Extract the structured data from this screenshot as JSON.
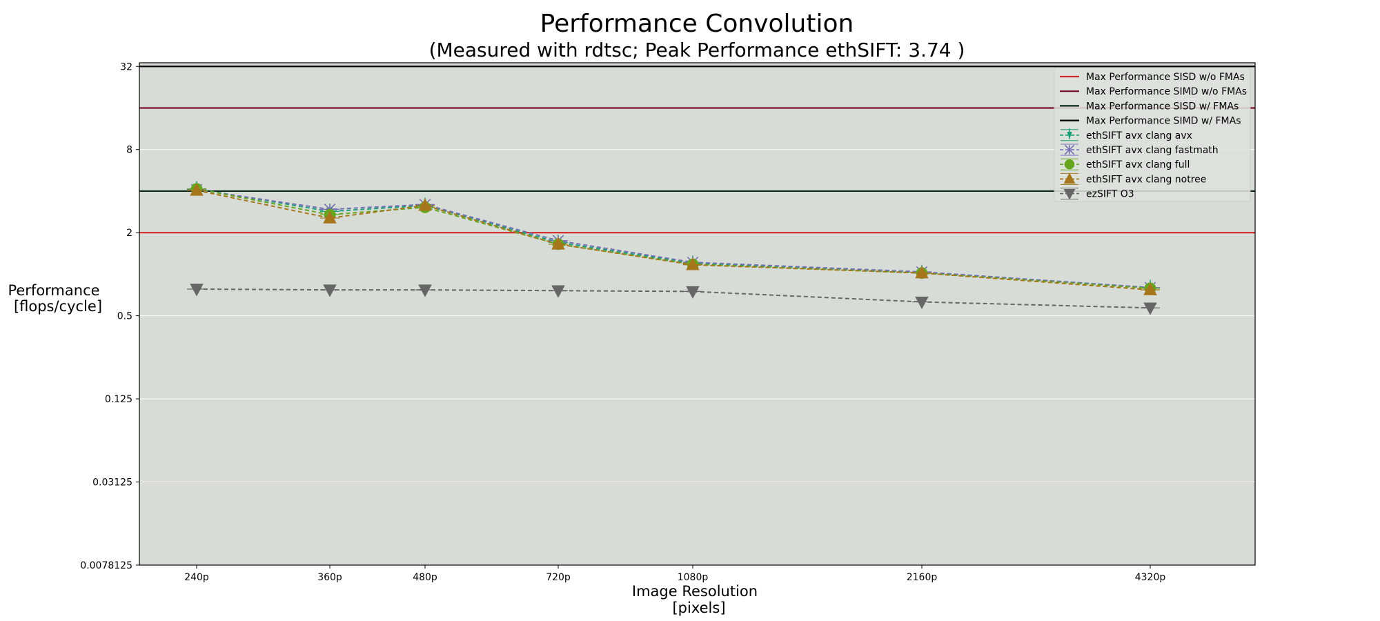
{
  "chart_data": {
    "type": "line",
    "title": "Performance Convolution",
    "subtitle": "(Measured with rdtsc; Peak Performance ethSIFT: 3.74 )",
    "xlabel": [
      "Image Resolution",
      "[pixels]"
    ],
    "ylabel": [
      "Performance",
      "[flops/cycle]"
    ],
    "yscale": "log2",
    "ylim": [
      0.0078125,
      34
    ],
    "yticks": [
      32,
      8,
      2,
      0.5,
      0.125,
      0.03125,
      0.0078125
    ],
    "ytick_labels": [
      "32",
      "8",
      "2",
      "0.5",
      "0.125",
      "0.03125",
      "0.0078125"
    ],
    "x": [
      240,
      360,
      480,
      720,
      1080,
      2160,
      4320
    ],
    "xtick_labels": [
      "240p",
      "360p",
      "480p",
      "720p",
      "1080p",
      "2160p",
      "4320p"
    ],
    "grid": "horizontal",
    "legend_position": "top-right",
    "background": "#d8dcd7",
    "reference_lines": [
      {
        "name": "Max Performance SISD w/o FMAs",
        "value": 2,
        "color": "#d62728"
      },
      {
        "name": "Max Performance SIMD w/o FMAs",
        "value": 16,
        "color": "#7a0a2a"
      },
      {
        "name": "Max Performance SISD w/ FMAs",
        "value": 4,
        "color": "#0b2a18"
      },
      {
        "name": "Max Performance SIMD w/ FMAs",
        "value": 32,
        "color": "#000000"
      }
    ],
    "series": [
      {
        "name": "ethSIFT avx clang avx",
        "color": "#1b9e77",
        "marker": "tri-down-thin",
        "values": [
          4.15,
          2.85,
          3.15,
          1.7,
          1.2,
          1.03,
          0.8
        ]
      },
      {
        "name": "ethSIFT avx clang fastmath",
        "color": "#7570b3",
        "marker": "x",
        "values": [
          4.1,
          2.95,
          3.2,
          1.75,
          1.22,
          1.04,
          0.8
        ]
      },
      {
        "name": "ethSIFT avx clang full",
        "color": "#66a61e",
        "marker": "circle",
        "values": [
          4.15,
          2.7,
          3.05,
          1.65,
          1.18,
          1.02,
          0.79
        ]
      },
      {
        "name": "ethSIFT avx clang notree",
        "color": "#a6761d",
        "marker": "triangle-up",
        "values": [
          4.05,
          2.55,
          3.15,
          1.65,
          1.17,
          1.02,
          0.77
        ]
      },
      {
        "name": "ezSIFT O3",
        "color": "#666666",
        "marker": "triangle-down",
        "values": [
          0.78,
          0.77,
          0.77,
          0.76,
          0.75,
          0.63,
          0.57
        ]
      }
    ]
  }
}
